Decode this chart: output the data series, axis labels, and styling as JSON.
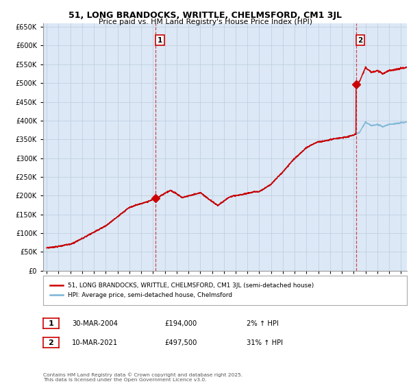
{
  "title_line1": "51, LONG BRANDOCKS, WRITTLE, CHELMSFORD, CM1 3JL",
  "title_line2": "Price paid vs. HM Land Registry's House Price Index (HPI)",
  "legend_line1": "51, LONG BRANDOCKS, WRITTLE, CHELMSFORD, CM1 3JL (semi-detached house)",
  "legend_line2": "HPI: Average price, semi-detached house, Chelmsford",
  "annotation1_label": "1",
  "annotation1_date": "30-MAR-2004",
  "annotation1_price": "£194,000",
  "annotation1_hpi": "2% ↑ HPI",
  "annotation2_label": "2",
  "annotation2_date": "10-MAR-2021",
  "annotation2_price": "£497,500",
  "annotation2_hpi": "31% ↑ HPI",
  "footer": "Contains HM Land Registry data © Crown copyright and database right 2025.\nThis data is licensed under the Open Government Licence v3.0.",
  "sale1_x": 2004.23,
  "sale1_y": 194000,
  "sale2_x": 2021.19,
  "sale2_y": 497500,
  "hpi_color": "#7ab4d8",
  "sale_color": "#cc0000",
  "vline_color": "#cc0000",
  "grid_color": "#c0cfe0",
  "background_color": "#ffffff",
  "plot_bg_color": "#dce8f5",
  "ylim": [
    0,
    660000
  ],
  "xlim_start": 1994.7,
  "xlim_end": 2025.5,
  "yticks": [
    0,
    50000,
    100000,
    150000,
    200000,
    250000,
    300000,
    350000,
    400000,
    450000,
    500000,
    550000,
    600000,
    650000
  ]
}
